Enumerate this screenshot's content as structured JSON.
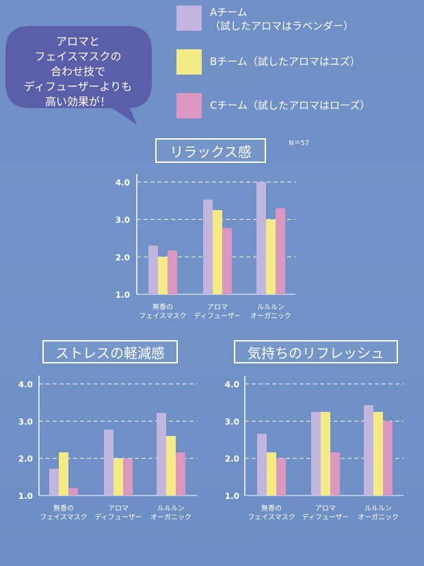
{
  "bubble": {
    "lines": [
      "アロマと",
      "フェイスマスクの",
      "合わせ技で",
      "ディフューザーよりも",
      "高い効果が！"
    ],
    "color": "#5b5ea8"
  },
  "legend": [
    {
      "lines": [
        "Aチーム",
        "（試したアロマはラベンダー）"
      ],
      "color": "#c2b6e0"
    },
    {
      "lines": [
        "Bチーム（試したアロマはユズ）"
      ],
      "color": "#f2eb86"
    },
    {
      "lines": [
        "Cチーム（試したアロマはローズ）"
      ],
      "color": "#db97bf"
    }
  ],
  "sample_size": "N＝57",
  "chart_data": [
    {
      "type": "bar",
      "title": "リラックス感",
      "categories": [
        [
          "無香の",
          "フェイスマスク"
        ],
        [
          "アロマ",
          "ディフューザー"
        ],
        [
          "ルルルン",
          "オーガニック"
        ]
      ],
      "series": [
        {
          "name": "A",
          "values": [
            2.3,
            3.53,
            4.0
          ]
        },
        {
          "name": "B",
          "values": [
            2.0,
            3.25,
            3.0
          ]
        },
        {
          "name": "C",
          "values": [
            2.17,
            2.77,
            3.3
          ]
        }
      ],
      "yticks": [
        "1.0",
        "2.0",
        "3.0",
        "4.0"
      ],
      "ylim": [
        1.0,
        4.0
      ],
      "grid": true
    },
    {
      "type": "bar",
      "title": "ストレスの軽減感",
      "categories": [
        [
          "無香の",
          "フェイスマスク"
        ],
        [
          "アロマ",
          "ディフューザー"
        ],
        [
          "ルルルン",
          "オーガニック"
        ]
      ],
      "series": [
        {
          "name": "A",
          "values": [
            1.72,
            2.77,
            3.22
          ]
        },
        {
          "name": "B",
          "values": [
            2.16,
            2.0,
            2.6
          ]
        },
        {
          "name": "C",
          "values": [
            1.2,
            2.0,
            2.16
          ]
        }
      ],
      "yticks": [
        "1.0",
        "2.0",
        "3.0",
        "4.0"
      ],
      "ylim": [
        1.0,
        4.0
      ],
      "grid": true
    },
    {
      "type": "bar",
      "title": "気持ちのリフレッシュ",
      "categories": [
        [
          "無香の",
          "フェイスマスク"
        ],
        [
          "アロマ",
          "ディフューザー"
        ],
        [
          "ルルルン",
          "オーガニック"
        ]
      ],
      "series": [
        {
          "name": "A",
          "values": [
            2.66,
            3.25,
            3.43
          ]
        },
        {
          "name": "B",
          "values": [
            2.16,
            3.25,
            3.25
          ]
        },
        {
          "name": "C",
          "values": [
            2.0,
            2.16,
            3.0
          ]
        }
      ],
      "yticks": [
        "1.0",
        "2.0",
        "3.0",
        "4.0"
      ],
      "ylim": [
        1.0,
        4.0
      ],
      "grid": true
    }
  ]
}
